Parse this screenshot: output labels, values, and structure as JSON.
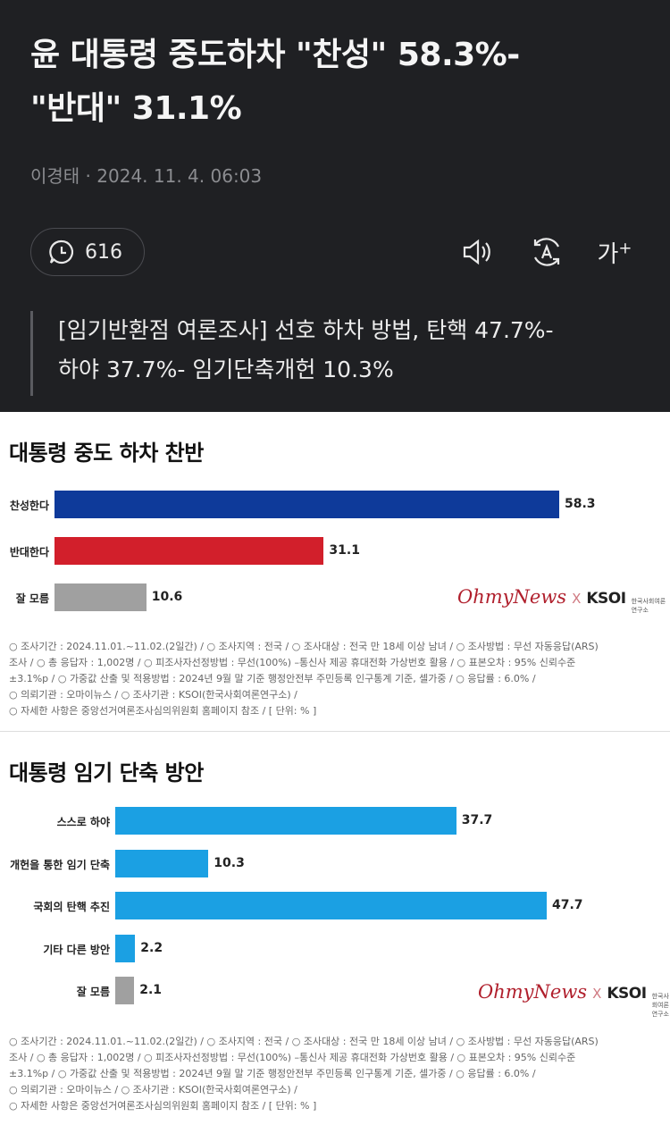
{
  "article": {
    "headline_line1": "윤 대통령 중도하차 \"찬성\" 58.3%-",
    "headline_line2": "\"반대\" 31.1%",
    "byline": "이경태 · 2024. 11. 4. 06:03",
    "comment_count": "616",
    "font_size_label": "가",
    "font_size_plus": "+",
    "summary_line1": "[임기반환점 여론조사] 선호 하차 방법, 탄핵 47.7%-",
    "summary_line2": "하야 37.7%- 임기단축개헌 10.3%",
    "icons": [
      "comment-icon",
      "speaker-icon",
      "translate-icon",
      "font-size-icon"
    ]
  },
  "chart_data": [
    {
      "type": "bar",
      "orientation": "horizontal",
      "title": "대통령 중도 하차 찬반",
      "categories": [
        "찬성한다",
        "반대한다",
        "잘 모름"
      ],
      "values": [
        58.3,
        31.1,
        10.6
      ],
      "value_labels": [
        "58.3",
        "31.1",
        "10.6"
      ],
      "colors": [
        "#0e3a9a",
        "#d21f2b",
        "#a0a0a0"
      ],
      "xlim": [
        0,
        58.3
      ],
      "grid": false,
      "legend": "none"
    },
    {
      "type": "bar",
      "orientation": "horizontal",
      "title": "대통령 임기 단축 방안",
      "categories": [
        "스스로 하야",
        "개헌을 통한 임기 단축",
        "국회의 탄핵 추진",
        "기타 다른 방안",
        "잘 모름"
      ],
      "values": [
        37.7,
        10.3,
        47.7,
        2.2,
        2.1
      ],
      "value_labels": [
        "37.7",
        "10.3",
        "47.7",
        "2.2",
        "2.1"
      ],
      "colors": [
        "#1ba0e3",
        "#1ba0e3",
        "#1ba0e3",
        "#1ba0e3",
        "#a0a0a0"
      ],
      "xlim": [
        0,
        47.7
      ],
      "grid": false,
      "legend": "none"
    }
  ],
  "logos": {
    "ohmynews": "OhmyNews",
    "x": "X",
    "ksoi": "KSOI",
    "ksoi_sub": "한국사회여론연구소"
  },
  "notes": {
    "line1": "○ 조사기간 : 2024.11.01.~11.02.(2일간) / ○ 조사지역 : 전국 / ○ 조사대상 : 전국 만 18세 이상 남녀 / ○ 조사방법 : 무선 자동응답(ARS)",
    "line2": "조사 / ○ 총 응답자 : 1,002명 / ○ 피조사자선정방법 : 무선(100%) –통신사 제공 휴대전화 가상번호 활용 / ○ 표본오차 : 95% 신뢰수준",
    "line3": "±3.1%p / ○ 가중값 산출 및 적용방법 : 2024년 9월 말 기준 행정안전부 주민등록 인구통계 기준, 셀가중 / ○ 응답률 : 6.0% /",
    "line4": "○ 의뢰기관 : 오마이뉴스 / ○ 조사기관 : KSOI(한국사회여론연구소) /",
    "line5": "○ 자세한 사항은 중앙선거여론조사심의위원회 홈페이지 참조 / [ 단위: % ]"
  }
}
